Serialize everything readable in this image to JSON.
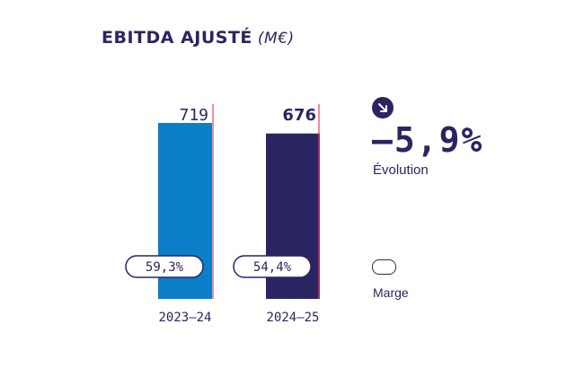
{
  "title": "EBITDA AJUSTÉ",
  "unit": "(M€)",
  "colors": {
    "text": "#2a2562",
    "bar_2023_24": "#0a7fc8",
    "bar_2024_25": "#2a2562",
    "accent_line": "#e83e5a"
  },
  "chart_data": {
    "type": "bar",
    "categories": [
      "2023–24",
      "2024–25"
    ],
    "series": [
      {
        "values": [
          719,
          676
        ]
      }
    ],
    "value_labels": [
      "719",
      "676"
    ],
    "margin_labels": [
      "59,3%",
      "54,4%"
    ],
    "margins": [
      59.3,
      54.4
    ],
    "ylim": [
      0,
      719
    ],
    "grid": false
  },
  "change": {
    "icon": "arrow-down-right-icon",
    "value": "–5,9%",
    "label": "Évolution"
  },
  "legend": {
    "label": "Marge"
  }
}
